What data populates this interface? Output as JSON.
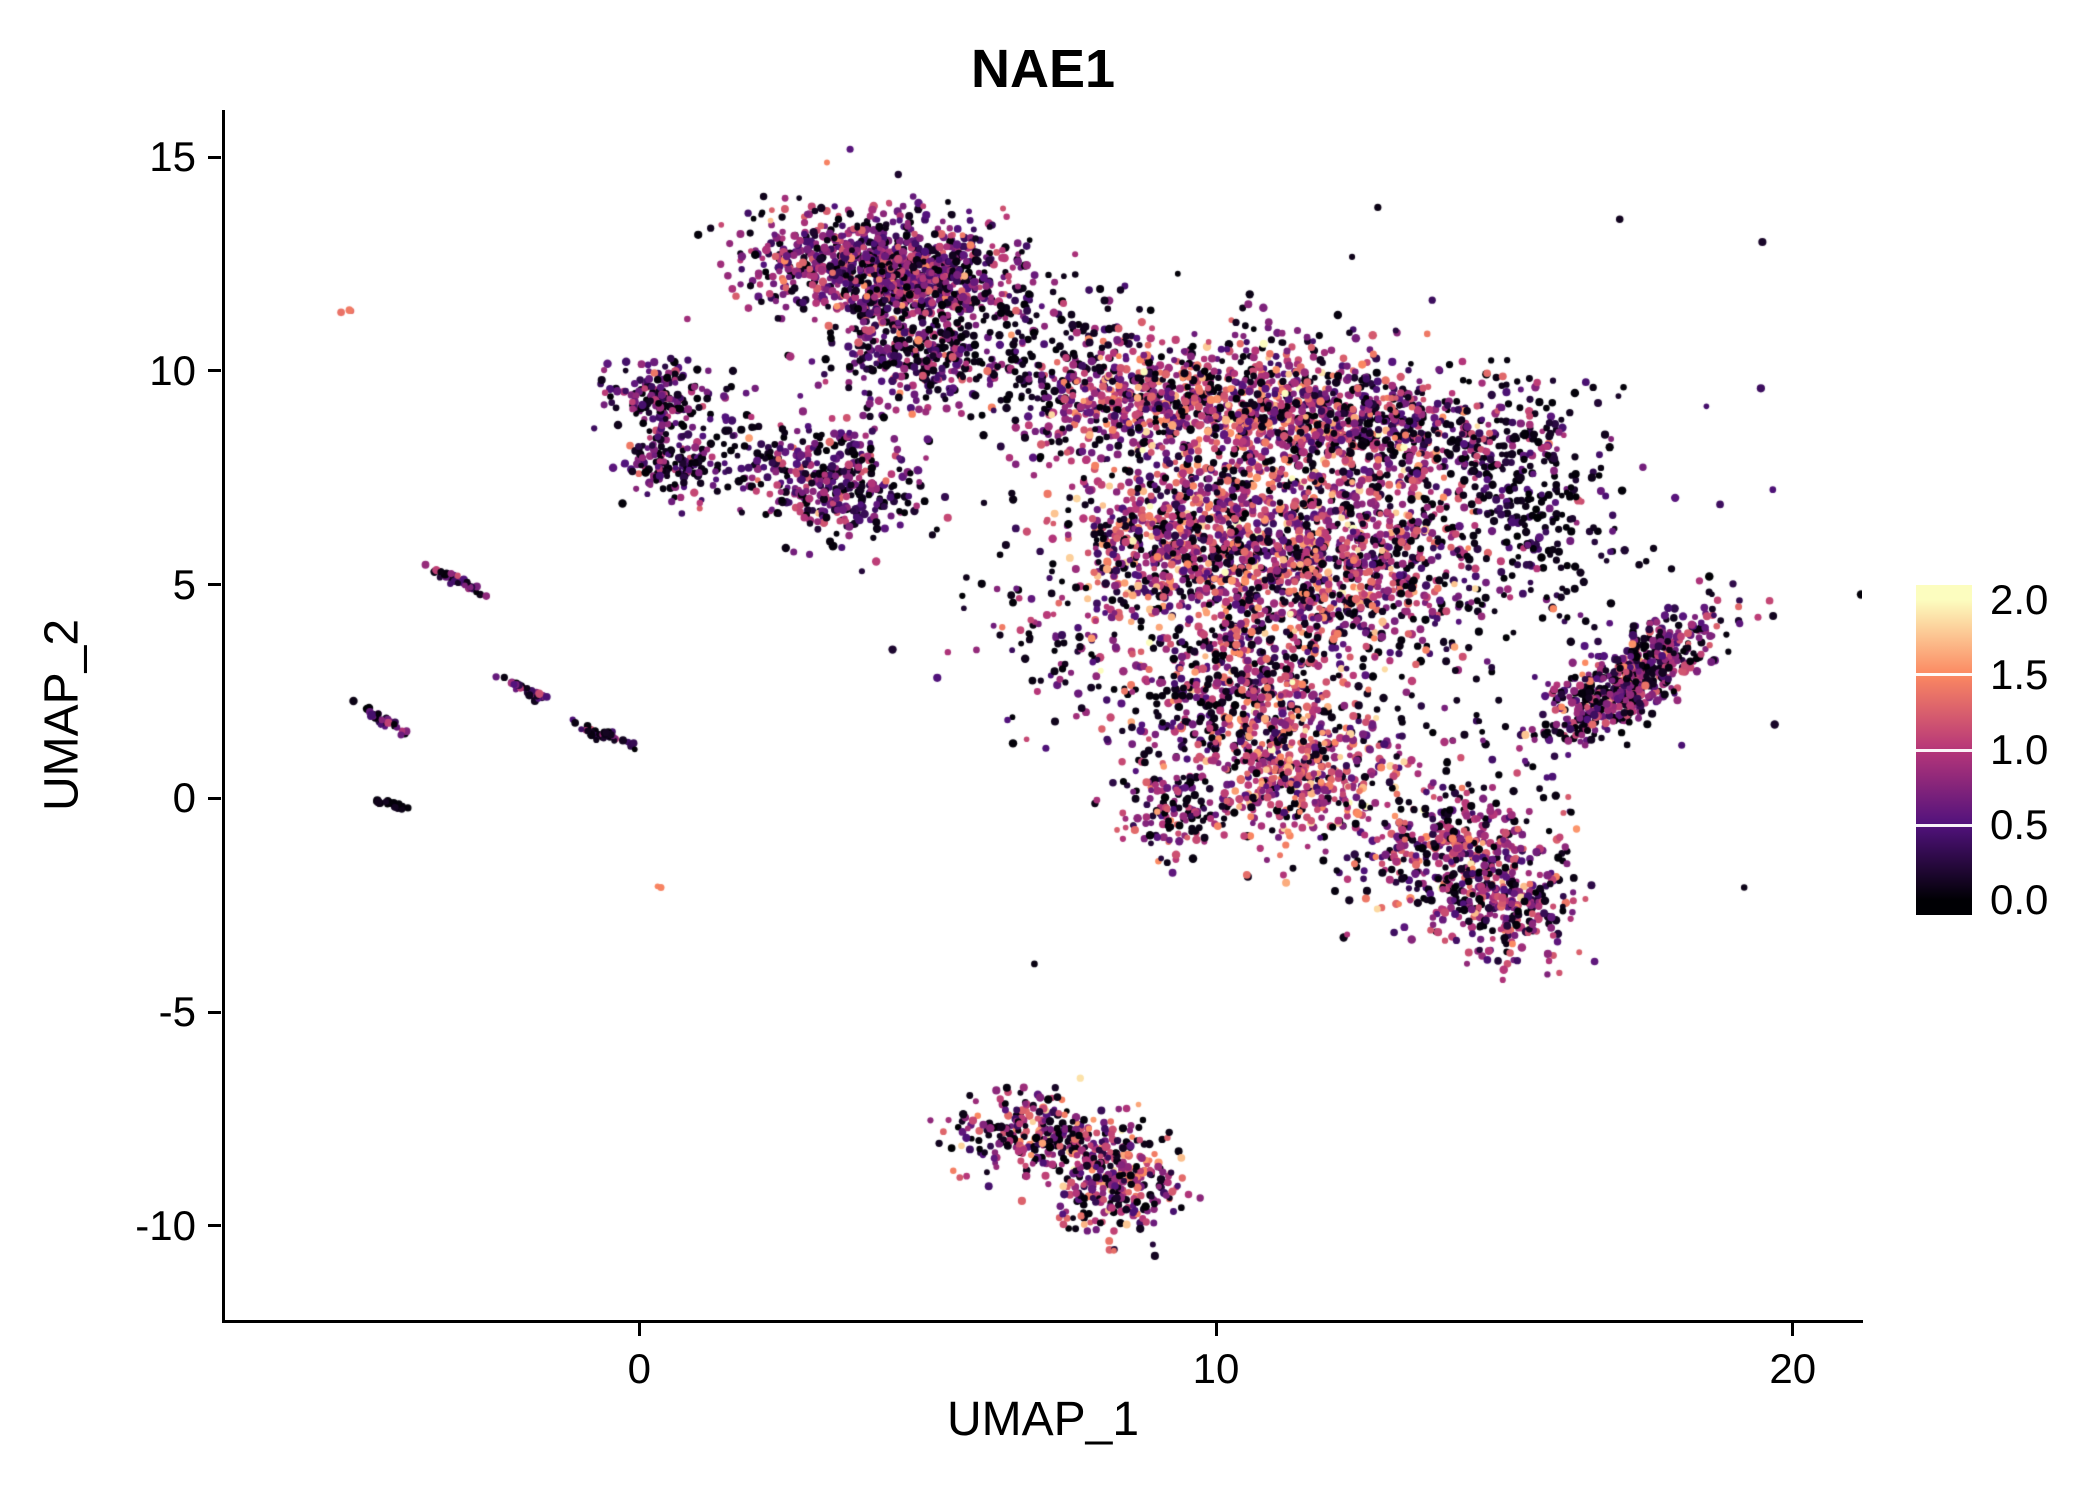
{
  "title": "NAE1",
  "axes": {
    "x": {
      "label": "UMAP_1",
      "tick_labels": [
        "0",
        "10",
        "20"
      ],
      "tick_values": [
        0,
        10,
        20
      ],
      "range": [
        -7.2,
        21.2
      ]
    },
    "y": {
      "label": "UMAP_2",
      "tick_labels": [
        "15",
        "10",
        "5",
        "0",
        "-5",
        "-10"
      ],
      "tick_values": [
        15,
        10,
        5,
        0,
        -5,
        -10
      ],
      "range": [
        -12.2,
        16.1
      ]
    }
  },
  "legend": {
    "tick_labels": [
      "2.0",
      "1.5",
      "1.0",
      "0.5",
      "0.0"
    ],
    "tick_values": [
      2.0,
      1.5,
      1.0,
      0.5,
      0.0
    ],
    "range": [
      0,
      2
    ],
    "position": "right"
  },
  "chart_data": {
    "type": "scatter",
    "title": "NAE1",
    "xlabel": "UMAP_1",
    "ylabel": "UMAP_2",
    "xlim": [
      -7.2,
      21.2
    ],
    "ylim": [
      -12.2,
      16.1
    ],
    "grid": false,
    "legend_position": "right",
    "color_scale": {
      "name": "magma",
      "domain": [
        0,
        2
      ],
      "stops": [
        {
          "value": 0.0,
          "color": "#000004"
        },
        {
          "value": 0.5,
          "color": "#51127C"
        },
        {
          "value": 1.0,
          "color": "#B63679"
        },
        {
          "value": 1.5,
          "color": "#FB8861"
        },
        {
          "value": 2.0,
          "color": "#FCFDBF"
        }
      ]
    },
    "point_radius_px": 3.3,
    "seed": 20240612,
    "clusters": [
      {
        "name": "top-main-a",
        "cx": 3.7,
        "cy": 12.5,
        "sdx": 1.0,
        "sdy": 0.65,
        "angle": -10,
        "count": 650,
        "expr_mean": 0.75,
        "expr_sd": 0.35,
        "black_frac": 0.22
      },
      {
        "name": "top-main-b",
        "cx": 5.1,
        "cy": 12.1,
        "sdx": 0.85,
        "sdy": 0.6,
        "angle": 0,
        "count": 500,
        "expr_mean": 0.7,
        "expr_sd": 0.35,
        "black_frac": 0.22
      },
      {
        "name": "top-sub",
        "cx": 4.6,
        "cy": 10.4,
        "sdx": 0.75,
        "sdy": 0.6,
        "angle": 0,
        "count": 300,
        "expr_mean": 0.65,
        "expr_sd": 0.35,
        "black_frac": 0.3
      },
      {
        "name": "top-right-sparse",
        "cx": 6.3,
        "cy": 10.6,
        "sdx": 0.9,
        "sdy": 0.8,
        "angle": 0,
        "count": 90,
        "expr_mean": 0.3,
        "expr_sd": 0.3,
        "black_frac": 0.55
      },
      {
        "name": "left-blob-upper",
        "cx": 0.35,
        "cy": 9.35,
        "sdx": 0.5,
        "sdy": 0.42,
        "angle": 0,
        "count": 170,
        "expr_mean": 0.6,
        "expr_sd": 0.35,
        "black_frac": 0.3
      },
      {
        "name": "left-blob-lower",
        "cx": 0.55,
        "cy": 7.8,
        "sdx": 0.48,
        "sdy": 0.45,
        "angle": 0,
        "count": 160,
        "expr_mean": 0.6,
        "expr_sd": 0.35,
        "black_frac": 0.3
      },
      {
        "name": "mid-cluster",
        "cx": 3.3,
        "cy": 7.4,
        "sdx": 0.75,
        "sdy": 0.62,
        "angle": -15,
        "count": 380,
        "expr_mean": 0.65,
        "expr_sd": 0.35,
        "black_frac": 0.27
      },
      {
        "name": "mid-left-sparse",
        "cx": 1.8,
        "cy": 8.4,
        "sdx": 0.55,
        "sdy": 0.6,
        "angle": 0,
        "count": 35,
        "expr_mean": 0.4,
        "expr_sd": 0.3,
        "black_frac": 0.5
      },
      {
        "name": "main-upper-left",
        "cx": 8.5,
        "cy": 9.4,
        "sdx": 1.15,
        "sdy": 0.75,
        "angle": 15,
        "count": 550,
        "expr_mean": 0.9,
        "expr_sd": 0.4,
        "black_frac": 0.22
      },
      {
        "name": "main-upper-mid",
        "cx": 11.2,
        "cy": 9.0,
        "sdx": 1.0,
        "sdy": 0.85,
        "angle": 0,
        "count": 650,
        "expr_mean": 1.0,
        "expr_sd": 0.42,
        "black_frac": 0.18
      },
      {
        "name": "main-upper-right",
        "cx": 13.4,
        "cy": 8.6,
        "sdx": 1.0,
        "sdy": 0.7,
        "angle": 0,
        "count": 350,
        "expr_mean": 0.7,
        "expr_sd": 0.4,
        "black_frac": 0.32
      },
      {
        "name": "right-arm",
        "cx": 15.3,
        "cy": 7.2,
        "sdx": 0.75,
        "sdy": 1.25,
        "angle": 0,
        "count": 280,
        "expr_mean": 0.45,
        "expr_sd": 0.35,
        "black_frac": 0.45
      },
      {
        "name": "main-center-left",
        "cx": 9.6,
        "cy": 6.0,
        "sdx": 1.2,
        "sdy": 1.15,
        "angle": 0,
        "count": 850,
        "expr_mean": 0.95,
        "expr_sd": 0.42,
        "black_frac": 0.2
      },
      {
        "name": "main-center-right",
        "cx": 12.1,
        "cy": 5.6,
        "sdx": 1.3,
        "sdy": 1.15,
        "angle": 0,
        "count": 900,
        "expr_mean": 1.0,
        "expr_sd": 0.42,
        "black_frac": 0.2
      },
      {
        "name": "main-lower",
        "cx": 10.4,
        "cy": 2.3,
        "sdx": 1.05,
        "sdy": 1.0,
        "angle": 0,
        "count": 500,
        "expr_mean": 0.95,
        "expr_sd": 0.42,
        "black_frac": 0.22
      },
      {
        "name": "main-lower-orange",
        "cx": 11.5,
        "cy": 0.5,
        "sdx": 0.8,
        "sdy": 0.85,
        "angle": 0,
        "count": 420,
        "expr_mean": 1.15,
        "expr_sd": 0.4,
        "black_frac": 0.15
      },
      {
        "name": "lower-left-spur",
        "cx": 9.2,
        "cy": -0.3,
        "sdx": 0.45,
        "sdy": 0.55,
        "angle": 0,
        "count": 140,
        "expr_mean": 0.8,
        "expr_sd": 0.4,
        "black_frac": 0.3
      },
      {
        "name": "lower-right-a",
        "cx": 14.3,
        "cy": -1.4,
        "sdx": 0.85,
        "sdy": 0.8,
        "angle": -20,
        "count": 470,
        "expr_mean": 0.85,
        "expr_sd": 0.4,
        "black_frac": 0.27
      },
      {
        "name": "lower-right-b",
        "cx": 15.1,
        "cy": -2.7,
        "sdx": 0.5,
        "sdy": 0.55,
        "angle": 0,
        "count": 180,
        "expr_mean": 0.8,
        "expr_sd": 0.4,
        "black_frac": 0.27
      },
      {
        "name": "diag-band-right",
        "cx": 17.2,
        "cy": 2.8,
        "sdx": 1.05,
        "sdy": 0.38,
        "angle": 46,
        "count": 620,
        "expr_mean": 0.75,
        "expr_sd": 0.4,
        "black_frac": 0.3
      },
      {
        "name": "bottom-a",
        "cx": 7.0,
        "cy": -7.9,
        "sdx": 0.78,
        "sdy": 0.45,
        "angle": -10,
        "count": 280,
        "expr_mean": 0.9,
        "expr_sd": 0.42,
        "black_frac": 0.25
      },
      {
        "name": "bottom-b",
        "cx": 8.2,
        "cy": -8.9,
        "sdx": 0.55,
        "sdy": 0.65,
        "angle": 10,
        "count": 300,
        "expr_mean": 0.9,
        "expr_sd": 0.42,
        "black_frac": 0.25
      },
      {
        "name": "gap-black-top",
        "cx": 7.0,
        "cy": 10.3,
        "sdx": 1.0,
        "sdy": 0.7,
        "angle": 0,
        "count": 70,
        "expr_mean": 0.2,
        "expr_sd": 0.25,
        "black_frac": 0.65
      },
      {
        "name": "halo-sparse",
        "cx": 12.0,
        "cy": 5.0,
        "sdx": 3.2,
        "sdy": 2.9,
        "angle": 0,
        "count": 450,
        "expr_mean": 0.3,
        "expr_sd": 0.3,
        "black_frac": 0.6
      },
      {
        "name": "left-of-main",
        "cx": 7.6,
        "cy": 3.6,
        "sdx": 0.8,
        "sdy": 1.1,
        "angle": 0,
        "count": 70,
        "expr_mean": 0.55,
        "expr_sd": 0.35,
        "black_frac": 0.4
      },
      {
        "name": "streak-1",
        "cx": -3.15,
        "cy": 5.1,
        "sdx": 0.26,
        "sdy": 0.05,
        "angle": -35,
        "count": 45,
        "expr_mean": 0.55,
        "expr_sd": 0.3,
        "black_frac": 0.3
      },
      {
        "name": "streak-2",
        "cx": -4.45,
        "cy": 1.85,
        "sdx": 0.22,
        "sdy": 0.05,
        "angle": -35,
        "count": 32,
        "expr_mean": 0.6,
        "expr_sd": 0.3,
        "black_frac": 0.3
      },
      {
        "name": "streak-3",
        "cx": -2.0,
        "cy": 2.55,
        "sdx": 0.2,
        "sdy": 0.05,
        "angle": -32,
        "count": 30,
        "expr_mean": 0.6,
        "expr_sd": 0.3,
        "black_frac": 0.3
      },
      {
        "name": "streak-4",
        "cx": -0.62,
        "cy": 1.5,
        "sdx": 0.3,
        "sdy": 0.05,
        "angle": -28,
        "count": 40,
        "expr_mean": 0.45,
        "expr_sd": 0.3,
        "black_frac": 0.45
      },
      {
        "name": "streak-5-black",
        "cx": -4.35,
        "cy": -0.12,
        "sdx": 0.18,
        "sdy": 0.04,
        "angle": -25,
        "count": 24,
        "expr_mean": 0.08,
        "expr_sd": 0.1,
        "black_frac": 0.8
      },
      {
        "name": "dot-red-topleft",
        "cx": -5.1,
        "cy": 11.4,
        "sdx": 0.05,
        "sdy": 0.04,
        "angle": 0,
        "count": 3,
        "expr_mean": 1.35,
        "expr_sd": 0.1,
        "black_frac": 0.0
      },
      {
        "name": "dot-orange-mid",
        "cx": 0.3,
        "cy": -2.05,
        "sdx": 0.03,
        "sdy": 0.03,
        "angle": 0,
        "count": 2,
        "expr_mean": 1.5,
        "expr_sd": 0.05,
        "black_frac": 0.0
      }
    ]
  }
}
